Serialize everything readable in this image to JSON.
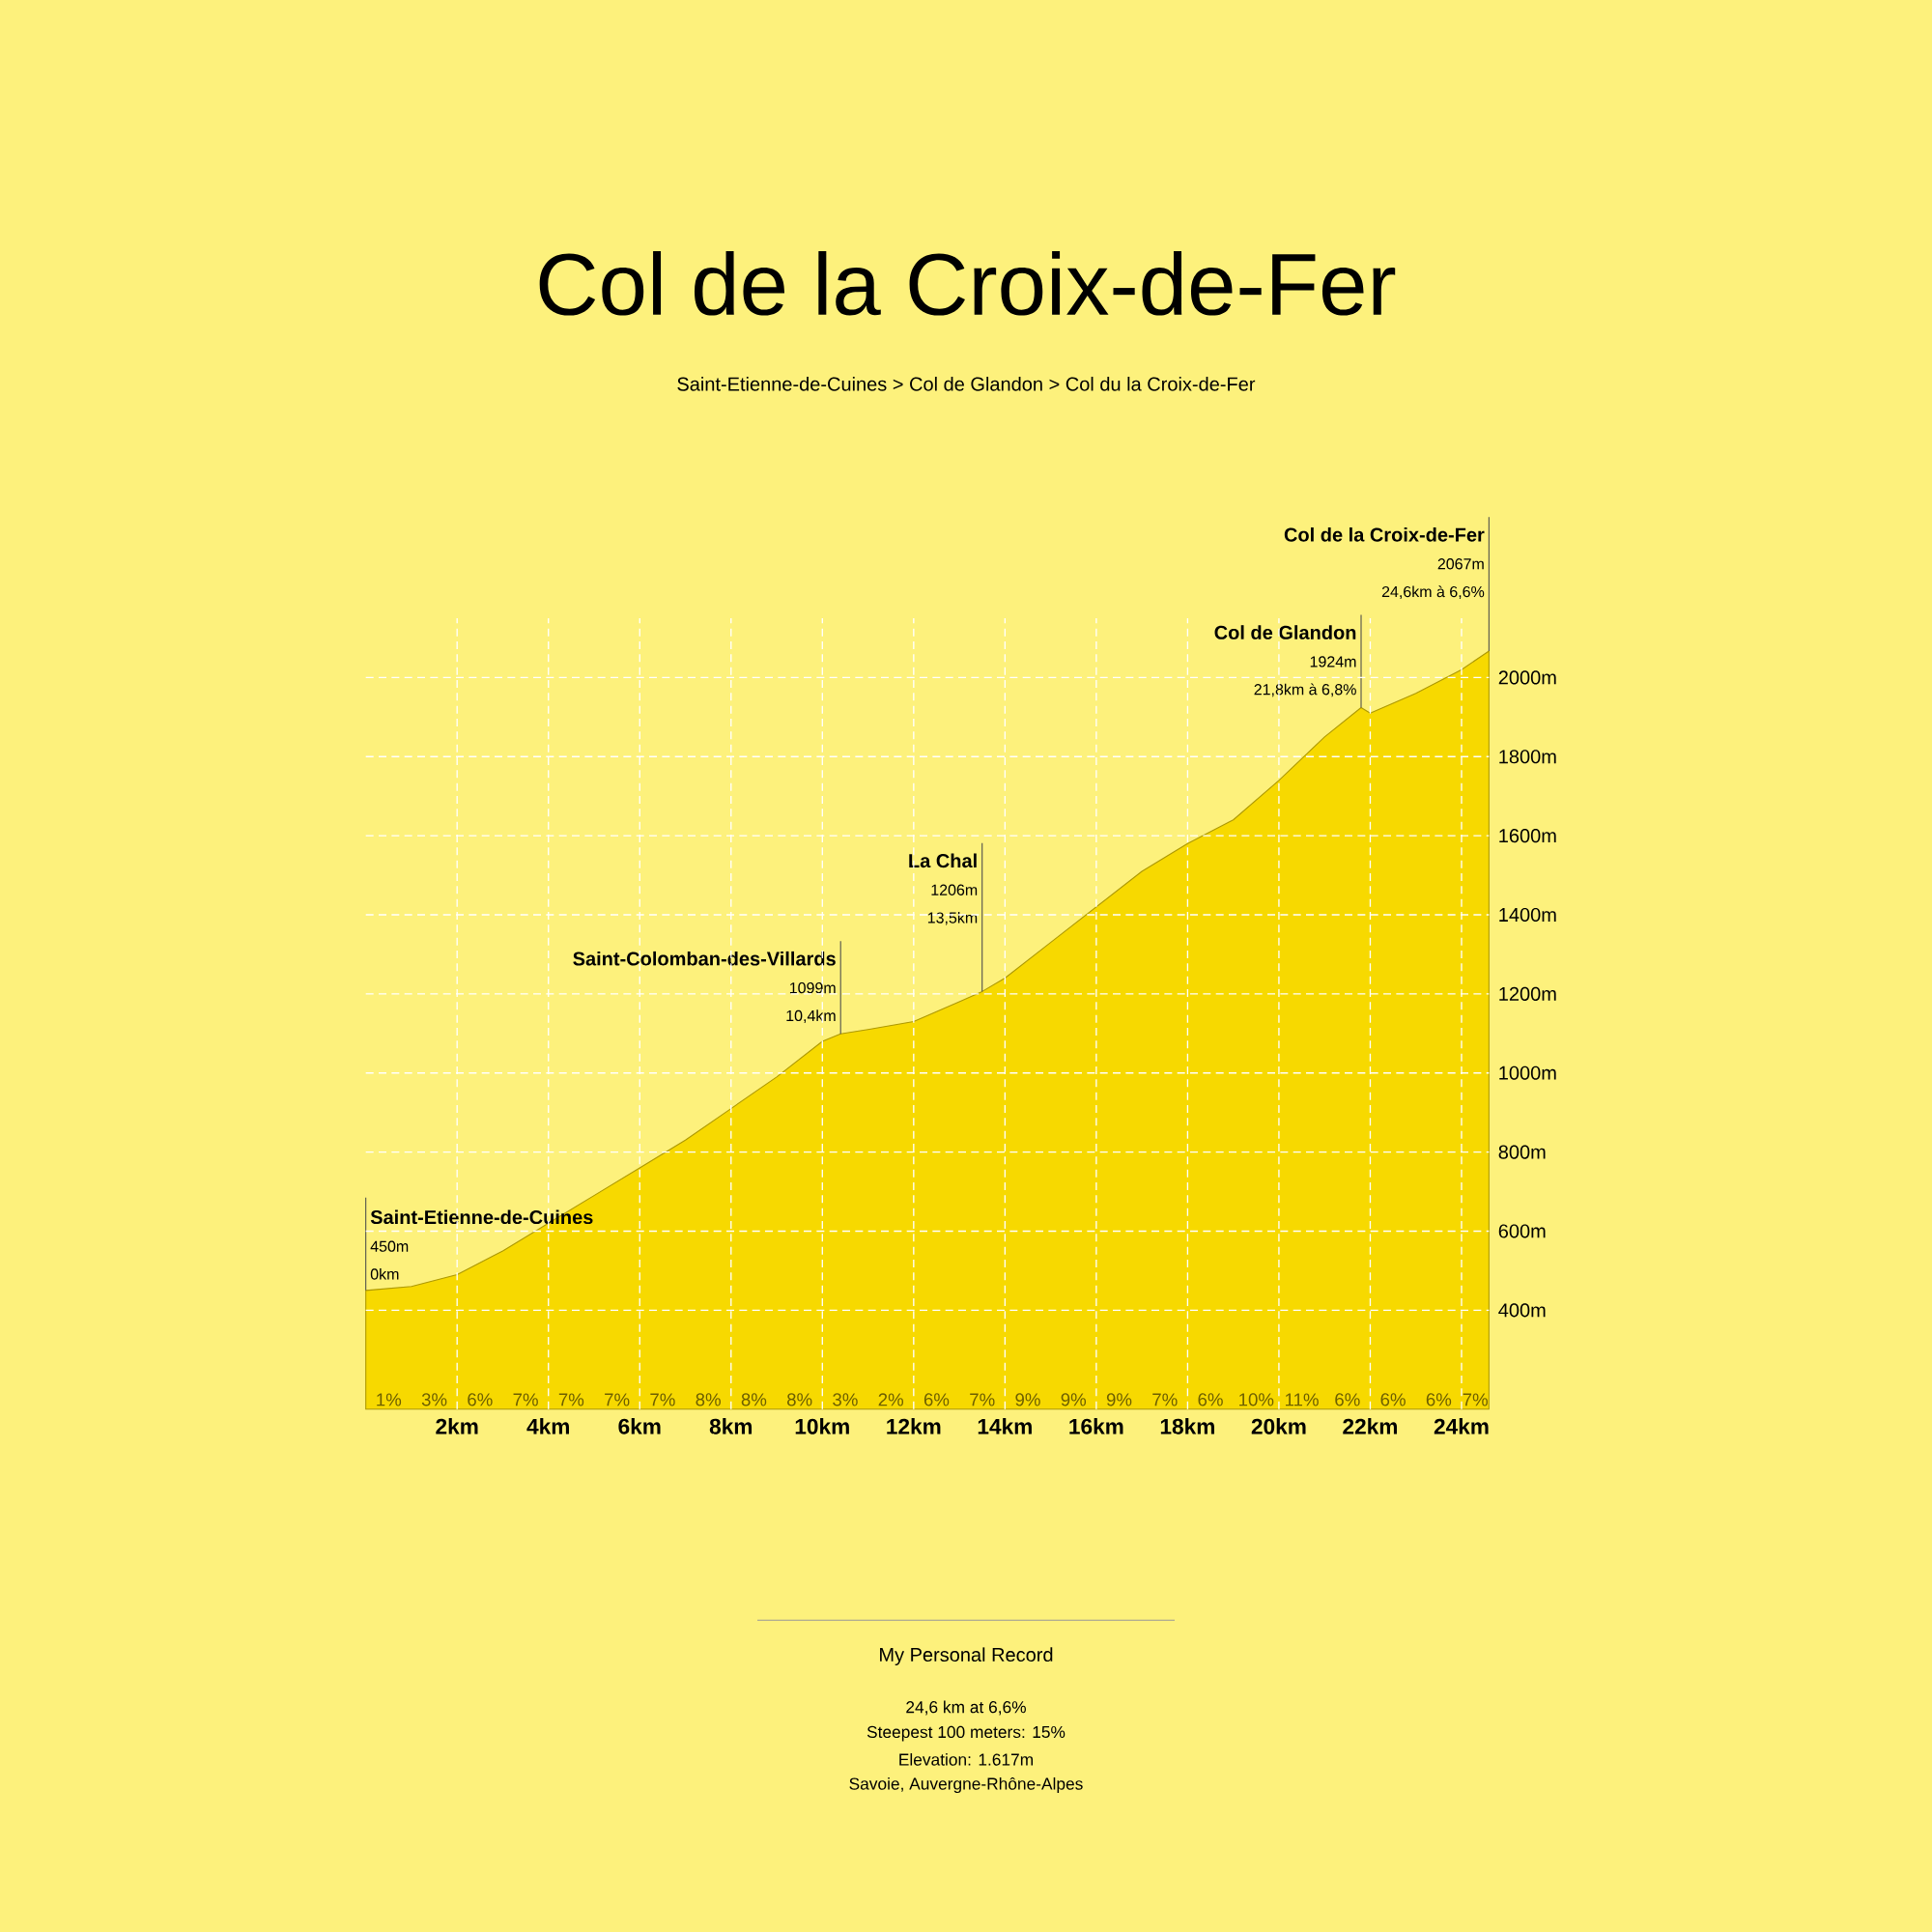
{
  "chart_data": {
    "type": "area",
    "title": "Col de la Croix-de-Fer",
    "subtitle": "Saint-Etienne-de-Cuines > Col de Glandon > Col du la Croix-de-Fer",
    "x": [
      0,
      1,
      2,
      3,
      4,
      5,
      6,
      7,
      8,
      9,
      10,
      10.4,
      11,
      12,
      13,
      13.5,
      14,
      15,
      16,
      17,
      18,
      19,
      20,
      21,
      21.8,
      22,
      23,
      24,
      24.6
    ],
    "values": [
      450,
      460,
      490,
      550,
      620,
      690,
      760,
      830,
      910,
      990,
      1080,
      1099,
      1110,
      1130,
      1180,
      1206,
      1240,
      1330,
      1420,
      1510,
      1580,
      1640,
      1740,
      1850,
      1924,
      1910,
      1960,
      2020,
      2067
    ],
    "color": "#f7d900",
    "xlim": [
      0,
      24.6
    ],
    "ylim": [
      150,
      2150
    ],
    "xticks": [
      {
        "value": 2,
        "label": "2km"
      },
      {
        "value": 4,
        "label": "4km"
      },
      {
        "value": 6,
        "label": "6km"
      },
      {
        "value": 8,
        "label": "8km"
      },
      {
        "value": 10,
        "label": "10km"
      },
      {
        "value": 12,
        "label": "12km"
      },
      {
        "value": 14,
        "label": "14km"
      },
      {
        "value": 16,
        "label": "16km"
      },
      {
        "value": 18,
        "label": "18km"
      },
      {
        "value": 20,
        "label": "20km"
      },
      {
        "value": 22,
        "label": "22km"
      },
      {
        "value": 24,
        "label": "24km"
      }
    ],
    "yticks": [
      {
        "value": 400,
        "label": "400m"
      },
      {
        "value": 600,
        "label": "600m"
      },
      {
        "value": 800,
        "label": "800m"
      },
      {
        "value": 1000,
        "label": "1000m"
      },
      {
        "value": 1200,
        "label": "1200m"
      },
      {
        "value": 1400,
        "label": "1400m"
      },
      {
        "value": 1600,
        "label": "1600m"
      },
      {
        "value": 1800,
        "label": "1800m"
      },
      {
        "value": 2000,
        "label": "2000m"
      }
    ],
    "grid": true,
    "annotations": [
      {
        "text": "Saint-Etienne-de-Cuines",
        "x": 0,
        "y": 450
      },
      "450m",
      "0km",
      {
        "text": "Saint-Colomban-des-Villards",
        "x": 10.4,
        "y": 1099
      },
      "1099m",
      "10,4km",
      {
        "text": "La Chal",
        "x": 13.5,
        "y": 1206
      },
      "1206m",
      "13,5km",
      {
        "text": "Col de Glandon",
        "x": 21.8,
        "y": 1924
      },
      "1924m",
      "21,8km à 6,8%",
      {
        "text": "Col de la Croix-de-Fer",
        "x": 24.6,
        "y": 2067
      },
      "2067m",
      "24,6km à 6,6%",
      {
        "text": "1%",
        "x": 0.5
      },
      {
        "text": "3%",
        "x": 1.5
      },
      {
        "text": "6%",
        "x": 2.5
      },
      {
        "text": "7%",
        "x": 3.5
      },
      {
        "text": "7%",
        "x": 4.5
      },
      {
        "text": "7%",
        "x": 5.5
      },
      {
        "text": "7%",
        "x": 6.5
      },
      {
        "text": "8%",
        "x": 7.5
      },
      {
        "text": "8%",
        "x": 8.5
      },
      {
        "text": "8%",
        "x": 9.5
      },
      {
        "text": "3%",
        "x": 10.5
      },
      {
        "text": "2%",
        "x": 11.5
      },
      {
        "text": "6%",
        "x": 12.5
      },
      {
        "text": "7%",
        "x": 13.5
      },
      {
        "text": "9%",
        "x": 14.5
      },
      {
        "text": "9%",
        "x": 15.5
      },
      {
        "text": "9%",
        "x": 16.5
      },
      {
        "text": "7%",
        "x": 17.5
      },
      {
        "text": "6%",
        "x": 18.5
      },
      {
        "text": "10%",
        "x": 19.5
      },
      {
        "text": "11%",
        "x": 20.5
      },
      {
        "text": "6%",
        "x": 21.5
      },
      {
        "text": "6%",
        "x": 22.5
      },
      {
        "text": "6%",
        "x": 23.5
      },
      {
        "text": "7%",
        "x": 24.3
      },
      "My Personal Record",
      "24,6 km at 6,6%",
      "Steepest 100 meters: 15%",
      "Elevation: 1.617m",
      "Savoie, Auvergne-Rhône-Alpes"
    ]
  }
}
